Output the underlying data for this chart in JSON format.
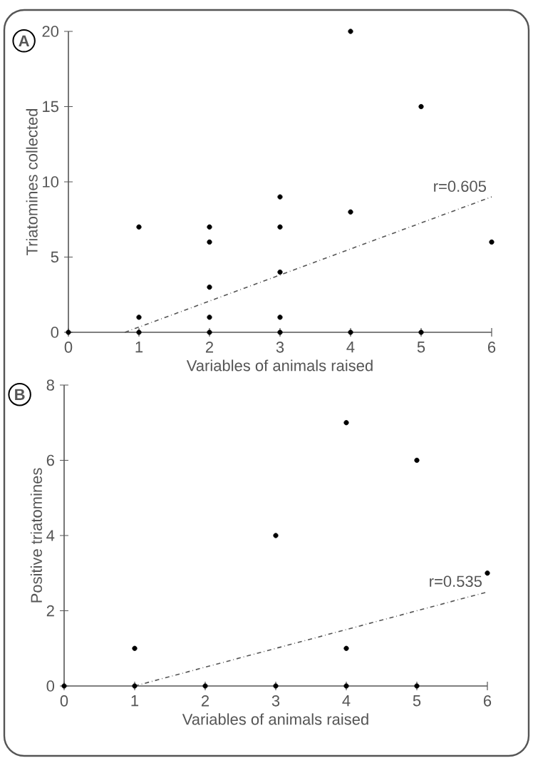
{
  "chart_data": [
    {
      "type": "scatter",
      "title": "A",
      "xlabel": "Variables of animals raised",
      "ylabel": "Triatomines collected",
      "xlim": [
        0,
        6
      ],
      "ylim": [
        0,
        20
      ],
      "xticks": [
        0,
        1,
        2,
        3,
        4,
        5,
        6
      ],
      "yticks": [
        0,
        5,
        10,
        15,
        20
      ],
      "series": [
        {
          "color": "#000000",
          "x": [
            0,
            1,
            1,
            1,
            2,
            2,
            2,
            2,
            2,
            3,
            3,
            3,
            3,
            3,
            4,
            4,
            4,
            5,
            5,
            6
          ],
          "values": [
            0,
            7,
            1,
            0,
            7,
            6,
            3,
            1,
            0,
            9,
            7,
            4,
            1,
            0,
            20,
            8,
            0,
            15,
            0,
            6
          ]
        },
        {
          "type": "line",
          "color": "#555555",
          "line_style": "dashdot",
          "x": [
            0.8,
            6
          ],
          "values": [
            0,
            9
          ]
        }
      ],
      "annotations": [
        "r=0.605"
      ]
    },
    {
      "type": "scatter",
      "title": "B",
      "xlabel": "Variables of animals raised",
      "ylabel": "Positive triatomines",
      "xlim": [
        0,
        6
      ],
      "ylim": [
        0,
        8
      ],
      "xticks": [
        0,
        1,
        2,
        3,
        4,
        5,
        6
      ],
      "yticks": [
        0,
        2,
        4,
        6,
        8
      ],
      "series": [
        {
          "color": "#000000",
          "x": [
            0,
            1,
            1,
            2,
            3,
            3,
            4,
            4,
            4,
            5,
            5,
            6
          ],
          "values": [
            0,
            1,
            0,
            0,
            4,
            0,
            7,
            1,
            0,
            6,
            0,
            3
          ]
        },
        {
          "type": "line",
          "color": "#555555",
          "line_style": "dashdot",
          "x": [
            1,
            6
          ],
          "values": [
            0,
            2.5
          ]
        }
      ],
      "annotations": [
        "r=0.535"
      ]
    }
  ]
}
